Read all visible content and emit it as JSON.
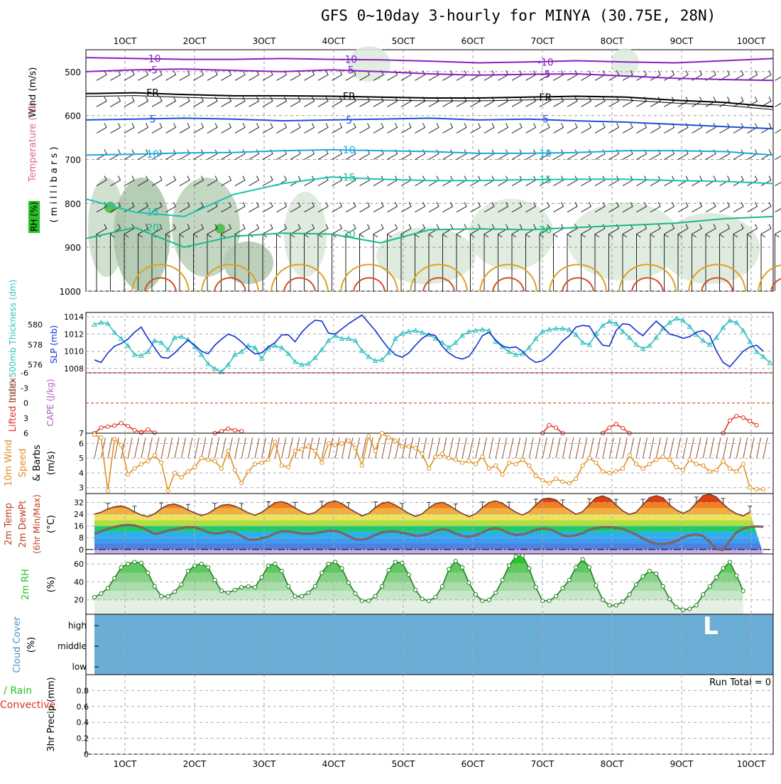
{
  "title": "GFS 0~10day 3-hourly for MINYA (30.75E, 28N)",
  "colors": {
    "rh_green": "#7fbf7f",
    "temp_purple": "#8a1fc2",
    "temp_blue": "#1e4fd8",
    "temp_cyan": "#19a8e0",
    "temp_teal": "#19c2b0",
    "temp_green": "#19b888",
    "temp_orange": "#e0a020",
    "slp_blue": "#1030d0",
    "thickness_cyan": "#30c0c0",
    "lifted_red": "#e03020",
    "wind_orange": "#e09020",
    "rh2m_green": "#20d020",
    "cloud_blue": "#6aaed6"
  },
  "chart_data": [
    {
      "panel": "upper-air",
      "type": "contour",
      "date_labels": [
        "1OCT",
        "2OCT",
        "3OCT",
        "4OCT",
        "5OCT",
        "6OCT",
        "7OCT",
        "8OCT",
        "9OCT",
        "10OCT"
      ],
      "ylabel_lines": [
        "Wind (m/s)",
        "Temperature (°C)",
        "RH (%)",
        "(millibars)"
      ],
      "ylabel_wind": "Wind (m/s)",
      "ylabel_temp": "Temperature (°C)",
      "ylabel_rh": "RH (%)",
      "ylabel_mb": "( m i l l i b a r s )",
      "pressure_ticks": [
        500,
        600,
        700,
        800,
        900,
        1000
      ],
      "pressure_range": [
        450,
        1000
      ],
      "contour_labels": [
        "-10",
        "-5",
        "FR",
        "5",
        "10",
        "15",
        "20"
      ],
      "contours": [
        {
          "name": "-10",
          "color": "#8a1fc2",
          "p": [
            468,
            470,
            472,
            472,
            470,
            472,
            473,
            476,
            480,
            478,
            475,
            478,
            480,
            475,
            470
          ]
        },
        {
          "name": "-5",
          "color": "#8a1fc2",
          "p": [
            500,
            496,
            494,
            497,
            500,
            496,
            500,
            505,
            508,
            506,
            505,
            510,
            515,
            518,
            520
          ]
        },
        {
          "name": "FR",
          "color": "#000000",
          "p": [
            550,
            548,
            552,
            555,
            555,
            556,
            558,
            560,
            560,
            558,
            556,
            558,
            565,
            570,
            580
          ]
        },
        {
          "name": "5",
          "color": "#1e4fd8",
          "p": [
            610,
            608,
            606,
            608,
            612,
            610,
            608,
            606,
            610,
            608,
            612,
            615,
            620,
            625,
            630
          ]
        },
        {
          "name": "10",
          "color": "#19a8e0",
          "p": [
            690,
            688,
            685,
            684,
            680,
            678,
            680,
            682,
            686,
            686,
            684,
            680,
            680,
            682,
            690
          ]
        },
        {
          "name": "15",
          "color": "#19c2b0",
          "p": [
            790,
            820,
            830,
            780,
            755,
            740,
            745,
            748,
            748,
            746,
            745,
            745,
            748,
            750,
            755
          ]
        },
        {
          "name": "20",
          "color": "#19b888",
          "p": [
            880,
            855,
            900,
            875,
            868,
            870,
            890,
            860,
            858,
            860,
            855,
            850,
            845,
            835,
            830
          ]
        }
      ]
    },
    {
      "panel": "slp-thickness",
      "type": "line",
      "ylabel_left": "1000-500mb Thickness (dm)",
      "ylabel_right": "SLP (mb)",
      "thickness_ticks": [
        576,
        578,
        580
      ],
      "slp_ticks": [
        1008,
        1010,
        1012,
        1014
      ],
      "slp_range": [
        1007.5,
        1014.5
      ],
      "thickness_range": [
        575.2,
        581.2
      ],
      "series": [
        {
          "name": "SLP (mb)",
          "color": "#1030d0",
          "values": [
            1009.0,
            1008.7,
            1009.8,
            1010.6,
            1010.9,
            1011.4,
            1012.2,
            1012.8,
            1011.5,
            1010.4,
            1009.3,
            1009.2,
            1009.8,
            1010.6,
            1011.3,
            1010.7,
            1010.0,
            1009.7,
            1010.7,
            1011.4,
            1012.0,
            1011.7,
            1011.1,
            1010.3,
            1009.7,
            1009.8,
            1010.5,
            1011.0,
            1011.9,
            1011.9,
            1011.1,
            1012.2,
            1013.0,
            1013.6,
            1013.5,
            1012.1,
            1012.0,
            1012.6,
            1013.2,
            1013.7,
            1014.2,
            1013.3,
            1012.4,
            1011.3,
            1010.3,
            1009.6,
            1009.3,
            1009.8,
            1010.7,
            1011.5,
            1012.0,
            1011.8,
            1010.6,
            1009.8,
            1009.3,
            1009.1,
            1009.4,
            1010.5,
            1011.8,
            1012.2,
            1011.3,
            1010.6,
            1010.4,
            1010.5,
            1010.0,
            1009.2,
            1008.7,
            1008.9,
            1009.5,
            1010.3,
            1011.2,
            1011.8,
            1012.8,
            1013.0,
            1012.9,
            1011.7,
            1010.7,
            1010.6,
            1012.4,
            1013.2,
            1013.1,
            1012.4,
            1011.8,
            1012.7,
            1013.5,
            1012.8,
            1012.0,
            1011.8,
            1011.5,
            1011.7,
            1012.2,
            1012.4,
            1011.8,
            1010.0,
            1008.7,
            1008.2,
            1009.1,
            1010.0,
            1010.5,
            1010.7,
            1010.0
          ]
        },
        {
          "name": "1000-500mb Thickness (dm)",
          "color": "#30c0c0",
          "values": [
            580.0,
            580.2,
            580.1,
            579.2,
            578.6,
            577.9,
            577.0,
            576.9,
            577.3,
            578.4,
            578.2,
            577.5,
            578.7,
            578.8,
            578.5,
            577.8,
            577.0,
            576.1,
            575.6,
            575.3,
            576.0,
            577.0,
            577.3,
            577.9,
            577.7,
            576.6,
            577.7,
            577.9,
            577.7,
            577.1,
            576.3,
            576.0,
            576.1,
            576.7,
            577.5,
            578.4,
            578.9,
            578.6,
            578.6,
            578.4,
            577.4,
            576.8,
            576.4,
            576.5,
            577.2,
            578.6,
            579.1,
            579.3,
            579.4,
            579.2,
            579.0,
            578.6,
            578.2,
            577.7,
            578.2,
            578.9,
            579.3,
            579.4,
            579.5,
            579.4,
            578.3,
            577.8,
            577.3,
            577.0,
            577.1,
            577.7,
            578.6,
            579.3,
            579.5,
            579.6,
            579.6,
            579.5,
            579.0,
            578.2,
            578.0,
            579.1,
            579.9,
            580.3,
            580.1,
            579.3,
            578.7,
            578.0,
            577.6,
            577.9,
            578.7,
            579.6,
            580.2,
            580.6,
            580.4,
            579.8,
            579.0,
            578.4,
            578.0,
            578.7,
            579.7,
            580.4,
            580.2,
            579.4,
            578.3,
            577.3,
            576.8,
            576.2
          ]
        }
      ]
    },
    {
      "panel": "lifted-index",
      "type": "line",
      "ylabel_left": "Lifted Index",
      "ylabel_right": "CAPE (J/kg)",
      "li_ticks": [
        "-6",
        "-3",
        "0",
        "3",
        "6"
      ],
      "cape_ticks": [
        "7"
      ],
      "li_range": [
        -6,
        6
      ],
      "series": [
        {
          "name": "Lifted Index",
          "color": "#e03020",
          "segments": [
            {
              "start": 0,
              "values": [
                6.0,
                4.9,
                4.7,
                4.5,
                4.0,
                4.6,
                5.4,
                5.8
              ]
            },
            {
              "start": 7,
              "values": [
                5.9,
                5.3,
                5.9
              ]
            },
            {
              "start": 18,
              "values": [
                6.0,
                5.6,
                5.1,
                5.4,
                5.6
              ]
            },
            {
              "start": 67,
              "values": [
                6.0,
                4.4,
                4.9,
                6.0
              ]
            },
            {
              "start": 76,
              "values": [
                6.0,
                4.9,
                4.2,
                5.0,
                6.0
              ]
            },
            {
              "start": 94,
              "values": [
                6.0,
                3.5,
                2.6,
                2.9,
                3.6,
                4.4
              ]
            }
          ]
        }
      ]
    },
    {
      "panel": "wind-10m",
      "type": "line",
      "ylabel": "10m Wind Speed & Barbs (m/s)",
      "ylabel_wind_a": "10m Wind",
      "ylabel_wind_b": "Speed",
      "ylabel_wind_c": "& Barbs",
      "ylabel_units": "(m/s)",
      "ticks": [
        3,
        4,
        5,
        6
      ],
      "range": [
        2.6,
        6.7
      ],
      "series": [
        {
          "name": "10m Wind Speed",
          "color": "#e09020",
          "values": [
            6.6,
            6.4,
            2.8,
            6.3,
            5.9,
            3.9,
            4.3,
            4.6,
            4.8,
            5.2,
            4.7,
            2.8,
            4.0,
            3.7,
            4.1,
            4.4,
            5.0,
            4.9,
            4.8,
            4.3,
            5.5,
            4.2,
            3.3,
            4.1,
            4.6,
            4.7,
            4.9,
            6.1,
            4.5,
            4.4,
            5.5,
            5.6,
            5.8,
            5.5,
            4.7,
            6.0,
            5.9,
            6.0,
            6.2,
            5.7,
            4.5,
            6.5,
            5.5,
            6.7,
            6.4,
            6.2,
            5.8,
            5.8,
            5.7,
            5.3,
            4.3,
            5.1,
            5.3,
            5.0,
            4.9,
            4.7,
            4.8,
            4.6,
            5.1,
            4.3,
            4.5,
            3.9,
            4.7,
            4.6,
            4.9,
            4.5,
            3.8,
            3.5,
            3.3,
            3.6,
            3.4,
            3.3,
            3.6,
            4.5,
            5.0,
            4.7,
            4.1,
            4.0,
            4.1,
            4.3,
            5.2,
            4.6,
            4.3,
            4.6,
            4.9,
            5.1,
            4.9,
            4.4,
            4.2,
            4.9,
            4.6,
            4.5,
            4.1,
            4.2,
            4.8,
            4.3,
            4.1,
            4.6,
            3.0,
            2.9,
            2.9
          ]
        }
      ]
    },
    {
      "panel": "temp-2m",
      "type": "area",
      "ylabel": "2m Temp 2m DewPt (6hr Min/Max) (°C)",
      "ylabel_a": "2m Temp",
      "ylabel_b": "2m DewPt",
      "ylabel_c": "(6hr Min/Max)",
      "ylabel_units": "(°C)",
      "ticks": [
        0,
        8,
        16,
        24,
        32
      ],
      "range": [
        -3,
        38
      ],
      "series": [
        {
          "name": "2m Temp",
          "color": "#7a3a2a",
          "values": [
            24.0,
            25.3,
            27.5,
            29.0,
            29.6,
            28.1,
            25.5,
            23.5,
            22.3,
            24.3,
            27.8,
            30.2,
            30.9,
            29.2,
            26.8,
            24.9,
            23.1,
            24.4,
            27.5,
            30.0,
            30.6,
            29.5,
            27.3,
            24.9,
            23.3,
            25.2,
            28.6,
            31.8,
            32.5,
            31.0,
            28.2,
            25.6,
            23.8,
            25.2,
            28.9,
            31.9,
            33.0,
            31.2,
            28.0,
            25.4,
            22.8,
            24.5,
            28.5,
            31.5,
            32.2,
            30.1,
            27.4,
            24.5,
            22.5,
            24.2,
            28.1,
            31.2,
            32.0,
            30.1,
            27.0,
            24.4,
            22.3,
            24.2,
            28.4,
            31.9,
            33.0,
            31.4,
            28.3,
            25.3,
            23.4,
            25.7,
            30.3,
            34.3,
            34.8,
            33.7,
            29.8,
            26.8,
            23.9,
            25.7,
            30.6,
            35.1,
            36.4,
            34.6,
            30.2,
            26.2,
            23.8,
            25.3,
            30.3,
            35.2,
            36.5,
            35.1,
            30.3,
            26.8,
            24.6,
            26.7,
            31.7,
            36.5,
            37.5,
            35.6,
            30.8,
            27.0,
            24.3,
            22.8,
            25.5
          ]
        },
        {
          "name": "2m DewPt",
          "color": "#d06050",
          "values": [
            10.5,
            12.4,
            14.0,
            15.3,
            16.3,
            16.7,
            16.3,
            15.1,
            12.8,
            10.6,
            11.4,
            12.8,
            13.6,
            14.5,
            15.2,
            15.1,
            13.6,
            11.6,
            10.9,
            11.2,
            12.3,
            11.5,
            9.0,
            6.8,
            6.5,
            7.6,
            8.7,
            11.0,
            12.3,
            12.3,
            11.5,
            10.8,
            10.6,
            11.1,
            11.9,
            12.7,
            12.7,
            11.4,
            9.0,
            7.1,
            6.6,
            7.6,
            9.9,
            11.6,
            12.4,
            12.3,
            11.3,
            10.5,
            9.3,
            9.6,
            10.5,
            12.7,
            13.8,
            12.9,
            10.8,
            9.2,
            8.6,
            9.7,
            11.5,
            13.7,
            14.4,
            13.2,
            11.1,
            9.8,
            10.2,
            11.6,
            13.3,
            14.2,
            13.9,
            12.0,
            9.7,
            8.9,
            9.7,
            11.0,
            13.3,
            14.5,
            15.2,
            15.1,
            14.7,
            14.0,
            12.3,
            10.0,
            7.6,
            5.3,
            3.9,
            3.6,
            4.3,
            5.7,
            8.2,
            9.7,
            10.3,
            9.1,
            5.2,
            0.2,
            -0.3,
            6.0,
            11.5,
            14.2,
            15.3,
            15.7,
            15.4
          ]
        }
      ]
    },
    {
      "panel": "rh-2m",
      "type": "area",
      "ylabel": "2m RH (%)",
      "ylabel_a": "2m RH",
      "ylabel_units": "(%)",
      "ticks": [
        20,
        40,
        60
      ],
      "range": [
        4,
        71
      ],
      "series": [
        {
          "name": "2m RH",
          "color": "#20d020",
          "values": [
            23,
            27,
            33,
            44,
            56,
            60,
            62,
            61,
            50,
            35,
            24,
            24,
            29,
            37,
            52,
            58,
            60,
            56,
            42,
            30,
            28,
            31,
            34,
            35,
            34,
            45,
            58,
            60,
            52,
            35,
            24,
            24,
            28,
            35,
            50,
            60,
            62,
            55,
            39,
            27,
            19,
            19,
            24,
            35,
            53,
            62,
            61,
            48,
            31,
            21,
            19,
            23,
            35,
            54,
            63,
            56,
            39,
            26,
            19,
            20,
            28,
            42,
            58,
            68,
            69,
            55,
            34,
            19,
            19,
            24,
            33,
            42,
            56,
            65,
            56,
            36,
            20,
            14,
            14,
            18,
            26,
            37,
            46,
            52,
            49,
            35,
            21,
            12,
            9,
            10,
            14,
            26,
            35,
            45,
            55,
            62,
            47,
            30
          ]
        }
      ]
    },
    {
      "panel": "cloud-cover",
      "type": "heatmap",
      "ylabel": "Cloud Cover (%)",
      "ylabel_a": "Cloud Cover",
      "ylabel_units": "(%)",
      "levels": [
        "high",
        "middle",
        "low"
      ],
      "values": "clear (0%) for all periods",
      "mark_label": "L"
    },
    {
      "panel": "precip",
      "type": "bar",
      "ylabel": "3hr Precip (mm)",
      "legend_a": "Total / Rain",
      "legend_b": "Convective",
      "ticks": [
        "0",
        "0.2",
        "0.4",
        "0.6",
        "0.8"
      ],
      "range": [
        0,
        1
      ],
      "run_total": "Run Total = 0",
      "values": "all 0"
    }
  ]
}
